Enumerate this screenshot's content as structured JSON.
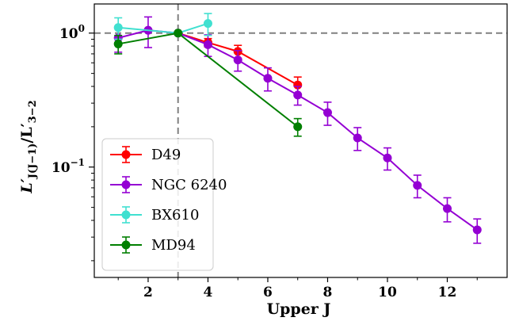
{
  "chart_data": {
    "type": "line",
    "title": "",
    "xlabel": "Upper J",
    "ylabel_main": "L′",
    "ylabel_sub": "J(J−1)",
    "ylabel_slash": "/L′",
    "ylabel_sub2": "3−2",
    "xlim": [
      0.2,
      14.0
    ],
    "ylim": [
      0.015,
      1.65
    ],
    "yscale": "log",
    "xticks": [
      2,
      4,
      6,
      8,
      10,
      12
    ],
    "yticks": [
      {
        "value": 1,
        "base": "10",
        "exp": "0"
      },
      {
        "value": 0.1,
        "base": "10",
        "exp": "−1"
      }
    ],
    "reference_lines": {
      "x": 3,
      "y": 1,
      "style": "dashed",
      "color": "#808080"
    },
    "grid": false,
    "legend_position": "lower-left",
    "series": [
      {
        "name": "D49",
        "color": "#ff0000",
        "points": [
          {
            "x": 3,
            "y": 1.0,
            "err": 0
          },
          {
            "x": 4,
            "y": 0.85,
            "err": 0.06
          },
          {
            "x": 5,
            "y": 0.73,
            "err": 0.08
          },
          {
            "x": 7,
            "y": 0.41,
            "err": 0.06
          }
        ]
      },
      {
        "name": "NGC 6240",
        "color": "#9400d3",
        "points": [
          {
            "x": 1,
            "y": 0.92,
            "err": 0.2
          },
          {
            "x": 2,
            "y": 1.05,
            "err": 0.27
          },
          {
            "x": 3,
            "y": 1.0,
            "err": 0
          },
          {
            "x": 4,
            "y": 0.82,
            "err": 0.15
          },
          {
            "x": 5,
            "y": 0.63,
            "err": 0.11
          },
          {
            "x": 6,
            "y": 0.46,
            "err": 0.09
          },
          {
            "x": 7,
            "y": 0.345,
            "err": 0.055
          },
          {
            "x": 8,
            "y": 0.255,
            "err": 0.05
          },
          {
            "x": 9,
            "y": 0.165,
            "err": 0.032
          },
          {
            "x": 10,
            "y": 0.117,
            "err": 0.022
          },
          {
            "x": 11,
            "y": 0.073,
            "err": 0.014
          },
          {
            "x": 12,
            "y": 0.049,
            "err": 0.01
          },
          {
            "x": 13,
            "y": 0.034,
            "err": 0.007
          }
        ]
      },
      {
        "name": "BX610",
        "color": "#40e0d0",
        "points": [
          {
            "x": 1,
            "y": 1.1,
            "err": 0.2
          },
          {
            "x": 3,
            "y": 1.0,
            "err": 0
          },
          {
            "x": 4,
            "y": 1.18,
            "err": 0.22
          }
        ]
      },
      {
        "name": "MD94",
        "color": "#007f00",
        "points": [
          {
            "x": 1,
            "y": 0.83,
            "err": 0.13
          },
          {
            "x": 3,
            "y": 1.0,
            "err": 0
          },
          {
            "x": 7,
            "y": 0.2,
            "err": 0.03
          }
        ]
      }
    ]
  }
}
